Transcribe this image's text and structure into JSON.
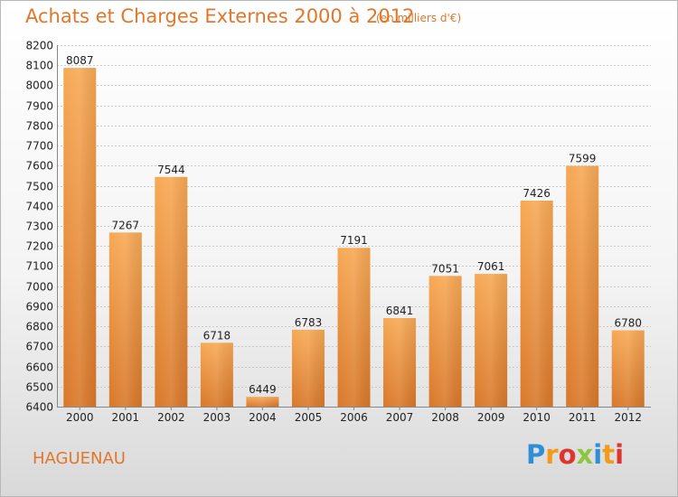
{
  "title": "Achats et Charges Externes 2000 à 2012",
  "subtitle": "(en milliers d'€)",
  "town": "HAGUENAU",
  "logo": {
    "letters": [
      "P",
      "r",
      "o",
      "x",
      "i",
      "t",
      "i"
    ]
  },
  "colors": {
    "accent": "#e2762a",
    "bar_top": "#f7a955",
    "bar_bottom": "#d9782a"
  },
  "chart_data": {
    "type": "bar",
    "categories": [
      "2000",
      "2001",
      "2002",
      "2003",
      "2004",
      "2005",
      "2006",
      "2007",
      "2008",
      "2009",
      "2010",
      "2011",
      "2012"
    ],
    "values": [
      8087,
      7267,
      7544,
      6718,
      6449,
      6783,
      7191,
      6841,
      7051,
      7061,
      7426,
      7599,
      6780
    ],
    "ylim": [
      6400,
      8200
    ],
    "yticks": [
      6400,
      6500,
      6600,
      6700,
      6800,
      6900,
      7000,
      7100,
      7200,
      7300,
      7400,
      7500,
      7600,
      7700,
      7800,
      7900,
      8000,
      8100,
      8200
    ],
    "grid": true
  }
}
